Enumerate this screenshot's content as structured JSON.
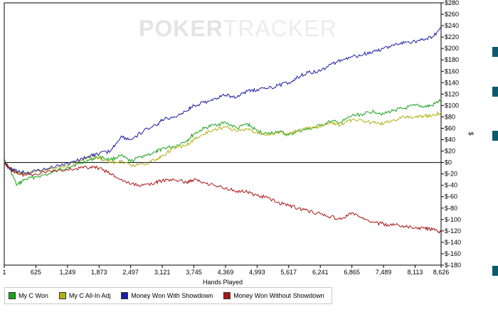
{
  "watermark": {
    "brand_left": "POKER",
    "brand_right": "TRACKER"
  },
  "chart_data": {
    "type": "line",
    "xlabel": "Hands Played",
    "ylabel": "$",
    "x_ticks": [
      "1",
      "625",
      "1,249",
      "1,873",
      "2,497",
      "3,121",
      "3,745",
      "4,369",
      "4,993",
      "5,617",
      "6,241",
      "6,865",
      "7,489",
      "8,113",
      "8,626"
    ],
    "y_ticks": [
      "$280",
      "$260",
      "$240",
      "$220",
      "$200",
      "$180",
      "$160",
      "$140",
      "$120",
      "$100",
      "$80",
      "$60",
      "$40",
      "$20",
      "$0",
      "$-20",
      "$-40",
      "$-60",
      "$-80",
      "$-100",
      "$-120",
      "$-140",
      "$-160",
      "$-180"
    ],
    "xlim": [
      1,
      8626
    ],
    "ylim": [
      -180,
      280
    ],
    "grid": false,
    "legend_position": "bottom-left",
    "series": [
      {
        "name": "My C Won",
        "color": "#1aa31a",
        "x": [
          1,
          100,
          250,
          400,
          625,
          900,
          1249,
          1500,
          1700,
          1873,
          2100,
          2300,
          2497,
          2750,
          3000,
          3121,
          3350,
          3600,
          3745,
          3950,
          4150,
          4369,
          4600,
          4800,
          4993,
          5200,
          5400,
          5617,
          5800,
          6000,
          6241,
          6450,
          6650,
          6865,
          7100,
          7300,
          7489,
          7700,
          7900,
          8113,
          8300,
          8450,
          8626
        ],
        "y": [
          2,
          -10,
          -40,
          -30,
          -25,
          -20,
          -8,
          -2,
          5,
          10,
          5,
          12,
          2,
          12,
          18,
          25,
          28,
          38,
          50,
          60,
          66,
          70,
          60,
          68,
          55,
          50,
          55,
          48,
          55,
          58,
          65,
          72,
          70,
          82,
          85,
          90,
          85,
          92,
          95,
          100,
          98,
          100,
          110
        ]
      },
      {
        "name": "My C All-In Adj",
        "color": "#b0b016",
        "x": [
          1,
          100,
          250,
          400,
          625,
          900,
          1249,
          1500,
          1700,
          1873,
          2100,
          2300,
          2497,
          2750,
          3000,
          3121,
          3350,
          3600,
          3745,
          3950,
          4150,
          4369,
          4600,
          4800,
          4993,
          5200,
          5400,
          5617,
          5800,
          6000,
          6241,
          6450,
          6650,
          6865,
          7100,
          7300,
          7489,
          7700,
          7900,
          8113,
          8300,
          8450,
          8626
        ],
        "y": [
          2,
          -8,
          -18,
          -20,
          -15,
          -12,
          -5,
          2,
          10,
          8,
          0,
          2,
          -5,
          -3,
          5,
          12,
          25,
          30,
          40,
          50,
          58,
          62,
          55,
          58,
          52,
          50,
          52,
          50,
          55,
          60,
          62,
          70,
          66,
          75,
          72,
          70,
          68,
          75,
          80,
          80,
          82,
          82,
          88
        ]
      },
      {
        "name": "Money Won With Showdown",
        "color": "#1c1ca6",
        "x": [
          1,
          100,
          250,
          400,
          625,
          900,
          1249,
          1500,
          1700,
          1873,
          2100,
          2300,
          2497,
          2750,
          3000,
          3121,
          3350,
          3600,
          3745,
          3950,
          4150,
          4369,
          4600,
          4800,
          4993,
          5200,
          5400,
          5617,
          5800,
          6000,
          6241,
          6450,
          6650,
          6865,
          7100,
          7300,
          7489,
          7700,
          7900,
          8113,
          8300,
          8450,
          8626
        ],
        "y": [
          5,
          -12,
          -15,
          -18,
          -15,
          -10,
          -2,
          5,
          12,
          15,
          20,
          45,
          40,
          55,
          65,
          75,
          80,
          90,
          100,
          105,
          112,
          118,
          115,
          125,
          128,
          130,
          135,
          140,
          150,
          158,
          160,
          172,
          180,
          185,
          190,
          195,
          200,
          205,
          210,
          212,
          215,
          220,
          235
        ]
      },
      {
        "name": "Money Won Without Showdown",
        "color": "#aa1616",
        "x": [
          1,
          100,
          250,
          400,
          625,
          900,
          1249,
          1500,
          1700,
          1873,
          2100,
          2300,
          2497,
          2750,
          3000,
          3121,
          3350,
          3600,
          3745,
          3950,
          4150,
          4369,
          4600,
          4800,
          4993,
          5200,
          5400,
          5617,
          5800,
          6000,
          6241,
          6450,
          6650,
          6865,
          7100,
          7300,
          7489,
          7700,
          7900,
          8113,
          8300,
          8450,
          8626
        ],
        "y": [
          0,
          -10,
          -18,
          -22,
          -20,
          -15,
          -12,
          -10,
          -8,
          -10,
          -20,
          -30,
          -38,
          -40,
          -35,
          -32,
          -30,
          -35,
          -30,
          -35,
          -40,
          -45,
          -50,
          -52,
          -58,
          -62,
          -70,
          -75,
          -80,
          -85,
          -90,
          -95,
          -100,
          -88,
          -100,
          -105,
          -108,
          -110,
          -112,
          -115,
          -115,
          -118,
          -122
        ]
      }
    ]
  }
}
